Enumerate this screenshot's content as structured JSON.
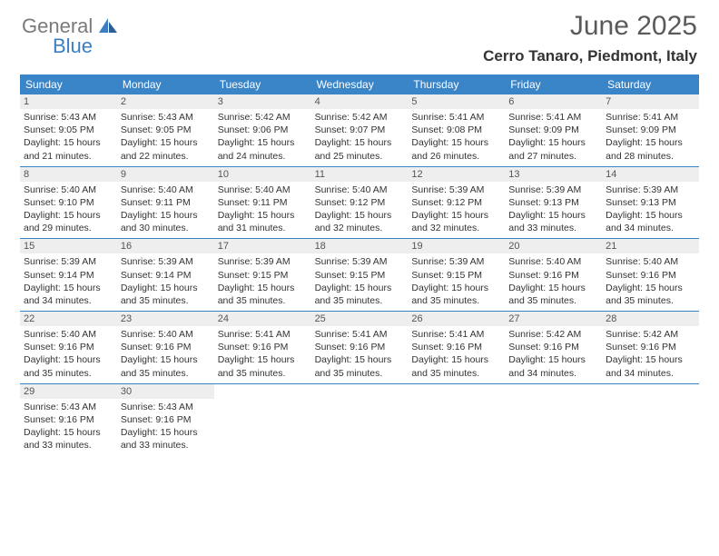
{
  "logo": {
    "general": "General",
    "blue": "Blue"
  },
  "title": "June 2025",
  "location": "Cerro Tanaro, Piedmont, Italy",
  "colors": {
    "header_bg": "#3a84c8",
    "header_text": "#ffffff",
    "daynum_bg": "#eeeeee",
    "border": "#3a84c8",
    "logo_gray": "#7a7a7a",
    "logo_blue": "#3a7fc4",
    "title_color": "#5a5a5a"
  },
  "weekdays": [
    "Sunday",
    "Monday",
    "Tuesday",
    "Wednesday",
    "Thursday",
    "Friday",
    "Saturday"
  ],
  "weeks": [
    [
      {
        "n": "1",
        "sr": "Sunrise: 5:43 AM",
        "ss": "Sunset: 9:05 PM",
        "dl1": "Daylight: 15 hours",
        "dl2": "and 21 minutes."
      },
      {
        "n": "2",
        "sr": "Sunrise: 5:43 AM",
        "ss": "Sunset: 9:05 PM",
        "dl1": "Daylight: 15 hours",
        "dl2": "and 22 minutes."
      },
      {
        "n": "3",
        "sr": "Sunrise: 5:42 AM",
        "ss": "Sunset: 9:06 PM",
        "dl1": "Daylight: 15 hours",
        "dl2": "and 24 minutes."
      },
      {
        "n": "4",
        "sr": "Sunrise: 5:42 AM",
        "ss": "Sunset: 9:07 PM",
        "dl1": "Daylight: 15 hours",
        "dl2": "and 25 minutes."
      },
      {
        "n": "5",
        "sr": "Sunrise: 5:41 AM",
        "ss": "Sunset: 9:08 PM",
        "dl1": "Daylight: 15 hours",
        "dl2": "and 26 minutes."
      },
      {
        "n": "6",
        "sr": "Sunrise: 5:41 AM",
        "ss": "Sunset: 9:09 PM",
        "dl1": "Daylight: 15 hours",
        "dl2": "and 27 minutes."
      },
      {
        "n": "7",
        "sr": "Sunrise: 5:41 AM",
        "ss": "Sunset: 9:09 PM",
        "dl1": "Daylight: 15 hours",
        "dl2": "and 28 minutes."
      }
    ],
    [
      {
        "n": "8",
        "sr": "Sunrise: 5:40 AM",
        "ss": "Sunset: 9:10 PM",
        "dl1": "Daylight: 15 hours",
        "dl2": "and 29 minutes."
      },
      {
        "n": "9",
        "sr": "Sunrise: 5:40 AM",
        "ss": "Sunset: 9:11 PM",
        "dl1": "Daylight: 15 hours",
        "dl2": "and 30 minutes."
      },
      {
        "n": "10",
        "sr": "Sunrise: 5:40 AM",
        "ss": "Sunset: 9:11 PM",
        "dl1": "Daylight: 15 hours",
        "dl2": "and 31 minutes."
      },
      {
        "n": "11",
        "sr": "Sunrise: 5:40 AM",
        "ss": "Sunset: 9:12 PM",
        "dl1": "Daylight: 15 hours",
        "dl2": "and 32 minutes."
      },
      {
        "n": "12",
        "sr": "Sunrise: 5:39 AM",
        "ss": "Sunset: 9:12 PM",
        "dl1": "Daylight: 15 hours",
        "dl2": "and 32 minutes."
      },
      {
        "n": "13",
        "sr": "Sunrise: 5:39 AM",
        "ss": "Sunset: 9:13 PM",
        "dl1": "Daylight: 15 hours",
        "dl2": "and 33 minutes."
      },
      {
        "n": "14",
        "sr": "Sunrise: 5:39 AM",
        "ss": "Sunset: 9:13 PM",
        "dl1": "Daylight: 15 hours",
        "dl2": "and 34 minutes."
      }
    ],
    [
      {
        "n": "15",
        "sr": "Sunrise: 5:39 AM",
        "ss": "Sunset: 9:14 PM",
        "dl1": "Daylight: 15 hours",
        "dl2": "and 34 minutes."
      },
      {
        "n": "16",
        "sr": "Sunrise: 5:39 AM",
        "ss": "Sunset: 9:14 PM",
        "dl1": "Daylight: 15 hours",
        "dl2": "and 35 minutes."
      },
      {
        "n": "17",
        "sr": "Sunrise: 5:39 AM",
        "ss": "Sunset: 9:15 PM",
        "dl1": "Daylight: 15 hours",
        "dl2": "and 35 minutes."
      },
      {
        "n": "18",
        "sr": "Sunrise: 5:39 AM",
        "ss": "Sunset: 9:15 PM",
        "dl1": "Daylight: 15 hours",
        "dl2": "and 35 minutes."
      },
      {
        "n": "19",
        "sr": "Sunrise: 5:39 AM",
        "ss": "Sunset: 9:15 PM",
        "dl1": "Daylight: 15 hours",
        "dl2": "and 35 minutes."
      },
      {
        "n": "20",
        "sr": "Sunrise: 5:40 AM",
        "ss": "Sunset: 9:16 PM",
        "dl1": "Daylight: 15 hours",
        "dl2": "and 35 minutes."
      },
      {
        "n": "21",
        "sr": "Sunrise: 5:40 AM",
        "ss": "Sunset: 9:16 PM",
        "dl1": "Daylight: 15 hours",
        "dl2": "and 35 minutes."
      }
    ],
    [
      {
        "n": "22",
        "sr": "Sunrise: 5:40 AM",
        "ss": "Sunset: 9:16 PM",
        "dl1": "Daylight: 15 hours",
        "dl2": "and 35 minutes."
      },
      {
        "n": "23",
        "sr": "Sunrise: 5:40 AM",
        "ss": "Sunset: 9:16 PM",
        "dl1": "Daylight: 15 hours",
        "dl2": "and 35 minutes."
      },
      {
        "n": "24",
        "sr": "Sunrise: 5:41 AM",
        "ss": "Sunset: 9:16 PM",
        "dl1": "Daylight: 15 hours",
        "dl2": "and 35 minutes."
      },
      {
        "n": "25",
        "sr": "Sunrise: 5:41 AM",
        "ss": "Sunset: 9:16 PM",
        "dl1": "Daylight: 15 hours",
        "dl2": "and 35 minutes."
      },
      {
        "n": "26",
        "sr": "Sunrise: 5:41 AM",
        "ss": "Sunset: 9:16 PM",
        "dl1": "Daylight: 15 hours",
        "dl2": "and 35 minutes."
      },
      {
        "n": "27",
        "sr": "Sunrise: 5:42 AM",
        "ss": "Sunset: 9:16 PM",
        "dl1": "Daylight: 15 hours",
        "dl2": "and 34 minutes."
      },
      {
        "n": "28",
        "sr": "Sunrise: 5:42 AM",
        "ss": "Sunset: 9:16 PM",
        "dl1": "Daylight: 15 hours",
        "dl2": "and 34 minutes."
      }
    ],
    [
      {
        "n": "29",
        "sr": "Sunrise: 5:43 AM",
        "ss": "Sunset: 9:16 PM",
        "dl1": "Daylight: 15 hours",
        "dl2": "and 33 minutes."
      },
      {
        "n": "30",
        "sr": "Sunrise: 5:43 AM",
        "ss": "Sunset: 9:16 PM",
        "dl1": "Daylight: 15 hours",
        "dl2": "and 33 minutes."
      },
      null,
      null,
      null,
      null,
      null
    ]
  ]
}
